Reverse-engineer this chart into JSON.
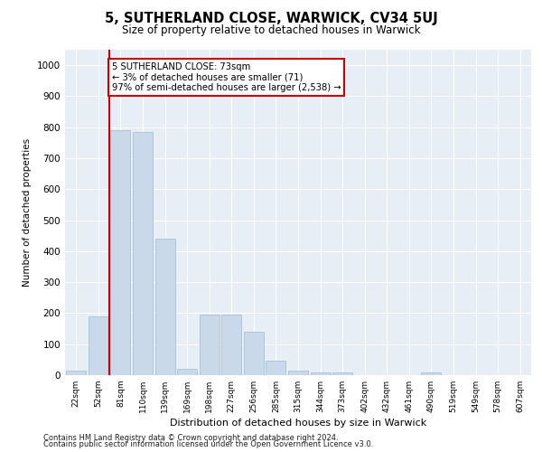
{
  "title": "5, SUTHERLAND CLOSE, WARWICK, CV34 5UJ",
  "subtitle": "Size of property relative to detached houses in Warwick",
  "xlabel": "Distribution of detached houses by size in Warwick",
  "ylabel": "Number of detached properties",
  "bar_categories": [
    "22sqm",
    "52sqm",
    "81sqm",
    "110sqm",
    "139sqm",
    "169sqm",
    "198sqm",
    "227sqm",
    "256sqm",
    "285sqm",
    "315sqm",
    "344sqm",
    "373sqm",
    "402sqm",
    "432sqm",
    "461sqm",
    "490sqm",
    "519sqm",
    "549sqm",
    "578sqm",
    "607sqm"
  ],
  "bar_values": [
    15,
    190,
    790,
    785,
    440,
    20,
    195,
    195,
    140,
    47,
    15,
    10,
    10,
    0,
    0,
    0,
    8,
    0,
    0,
    0,
    0
  ],
  "bar_color": "#c9d9ea",
  "bar_edge_color": "#a0b8d0",
  "vline_x": 1.5,
  "vline_color": "#cc0000",
  "annotation_text": "5 SUTHERLAND CLOSE: 73sqm\n← 3% of detached houses are smaller (71)\n97% of semi-detached houses are larger (2,538) →",
  "annotation_box_color": "#ffffff",
  "annotation_box_edge": "#cc0000",
  "ylim": [
    0,
    1050
  ],
  "yticks": [
    0,
    100,
    200,
    300,
    400,
    500,
    600,
    700,
    800,
    900,
    1000
  ],
  "background_color": "#ffffff",
  "plot_bg_color": "#e8eef5",
  "grid_color": "#ffffff",
  "footer1": "Contains HM Land Registry data © Crown copyright and database right 2024.",
  "footer2": "Contains public sector information licensed under the Open Government Licence v3.0."
}
